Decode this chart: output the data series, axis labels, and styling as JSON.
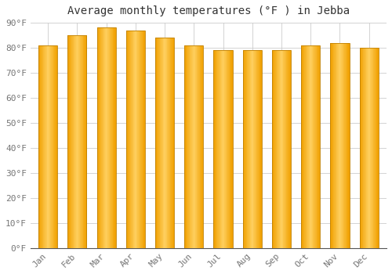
{
  "title": "Average monthly temperatures (°F ) in Jebba",
  "months": [
    "Jan",
    "Feb",
    "Mar",
    "Apr",
    "May",
    "Jun",
    "Jul",
    "Aug",
    "Sep",
    "Oct",
    "Nov",
    "Dec"
  ],
  "values": [
    81,
    85,
    88,
    87,
    84,
    81,
    79,
    79,
    79,
    81,
    82,
    80
  ],
  "bar_color_center": "#FFD060",
  "bar_color_edge": "#F0A000",
  "bar_border_color": "#C08000",
  "ylim": [
    0,
    90
  ],
  "yticks": [
    0,
    10,
    20,
    30,
    40,
    50,
    60,
    70,
    80,
    90
  ],
  "ytick_labels": [
    "0°F",
    "10°F",
    "20°F",
    "30°F",
    "40°F",
    "50°F",
    "60°F",
    "70°F",
    "80°F",
    "90°F"
  ],
  "background_color": "#FFFFFF",
  "grid_color": "#CCCCCC",
  "title_fontsize": 10,
  "tick_fontsize": 8,
  "bar_width": 0.65
}
